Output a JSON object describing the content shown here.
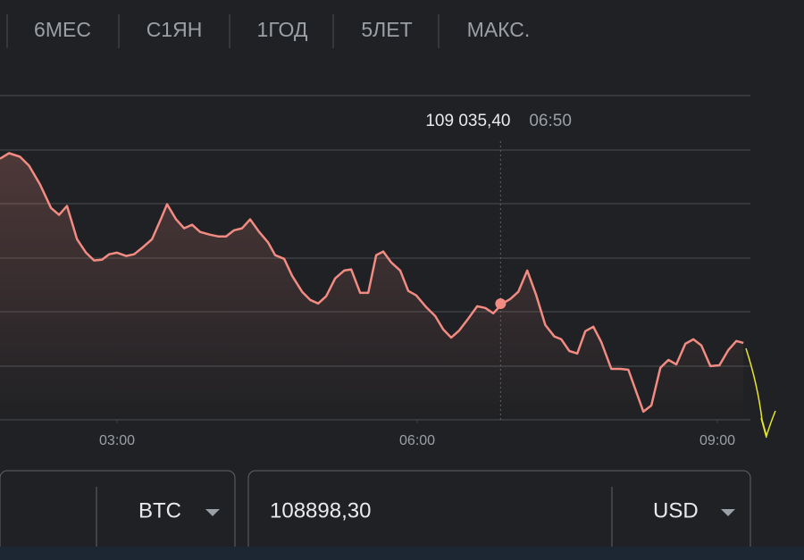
{
  "tabs": [
    "6МЕС",
    "С1ЯН",
    "1ГОД",
    "5ЛЕТ",
    "МАКС."
  ],
  "chart_data": {
    "type": "line",
    "color": "#f28b82",
    "x": [
      1.83,
      1.92,
      2.03,
      2.12,
      2.23,
      2.34,
      2.42,
      2.5,
      2.6,
      2.69,
      2.77,
      2.85,
      2.92,
      3.0,
      3.09,
      3.17,
      3.26,
      3.35,
      3.44,
      3.5,
      3.59,
      3.67,
      3.75,
      3.83,
      3.93,
      4.01,
      4.09,
      4.17,
      4.25,
      4.33,
      4.42,
      4.51,
      4.58,
      4.67,
      4.75,
      4.85,
      4.93,
      5.01,
      5.09,
      5.18,
      5.27,
      5.34,
      5.43,
      5.51,
      5.59,
      5.66,
      5.74,
      5.83,
      5.91,
      5.99,
      6.09,
      6.18,
      6.26,
      6.34,
      6.42,
      6.51,
      6.6,
      6.68,
      6.76,
      6.85,
      6.93,
      7.01,
      7.1,
      7.19,
      7.28,
      7.37,
      7.44,
      7.52,
      7.6,
      7.68,
      7.76,
      7.84,
      7.94,
      8.03,
      8.11,
      8.19,
      8.26,
      8.34,
      8.43,
      8.51,
      8.59,
      8.68,
      8.76,
      8.84,
      8.93,
      9.02,
      9.11,
      9.19,
      9.26
    ],
    "values": [
      109554,
      109574,
      109561,
      109529,
      109462,
      109378,
      109353,
      109385,
      109266,
      109218,
      109190,
      109193,
      109212,
      109218,
      109206,
      109212,
      109238,
      109266,
      109340,
      109391,
      109337,
      109305,
      109318,
      109292,
      109282,
      109276,
      109276,
      109298,
      109305,
      109337,
      109292,
      109254,
      109209,
      109196,
      109135,
      109078,
      109049,
      109036,
      109062,
      109126,
      109154,
      109158,
      109074,
      109074,
      109209,
      109222,
      109183,
      109154,
      109081,
      109065,
      109023,
      108991,
      108943,
      108914,
      108940,
      108982,
      109026,
      109020,
      109001,
      109035.4,
      109052,
      109078,
      109154,
      109065,
      108959,
      108918,
      108908,
      108866,
      108857,
      108937,
      108953,
      108898,
      108802,
      108802,
      108799,
      108719,
      108649,
      108671,
      108806,
      108834,
      108818,
      108892,
      108908,
      108886,
      108812,
      108815,
      108870,
      108902,
      108895
    ],
    "xlim": [
      1.83,
      9.33
    ],
    "ylim": [
      108620,
      109780
    ],
    "xticks": [
      {
        "value": 3,
        "label": "03:00"
      },
      {
        "value": 6,
        "label": "06:00"
      },
      {
        "value": 9,
        "label": "09:00"
      }
    ],
    "tooltip": {
      "value": 109035.4,
      "value_label": "109 035,40",
      "x": 6.8333,
      "x_label": "06:50"
    }
  },
  "converter": {
    "from_currency": "BTC",
    "amount": "108898,30",
    "to_currency": "USD"
  }
}
